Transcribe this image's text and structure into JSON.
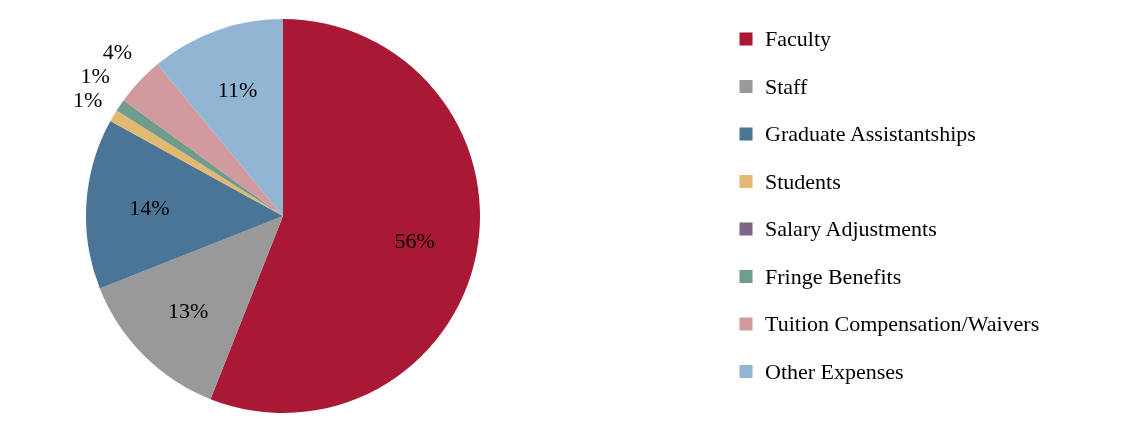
{
  "chart_data": {
    "type": "pie",
    "categories": [
      "Faculty",
      "Staff",
      "Graduate Assistantships",
      "Students",
      "Salary Adjustments",
      "Fringe Benefits",
      "Tuition Compensation/Waivers",
      "Other Expenses"
    ],
    "values": [
      56,
      13,
      14,
      1,
      0,
      1,
      4,
      11
    ],
    "colors": [
      "#a91834",
      "#999999",
      "#4a7597",
      "#e3b871",
      "#7f6584",
      "#6f9c8d",
      "#d19a9f",
      "#91b5d3"
    ],
    "value_labels": [
      "56%",
      "13%",
      "14%",
      "1%",
      null,
      "1%",
      "4%",
      "11%"
    ],
    "legend": "right"
  }
}
